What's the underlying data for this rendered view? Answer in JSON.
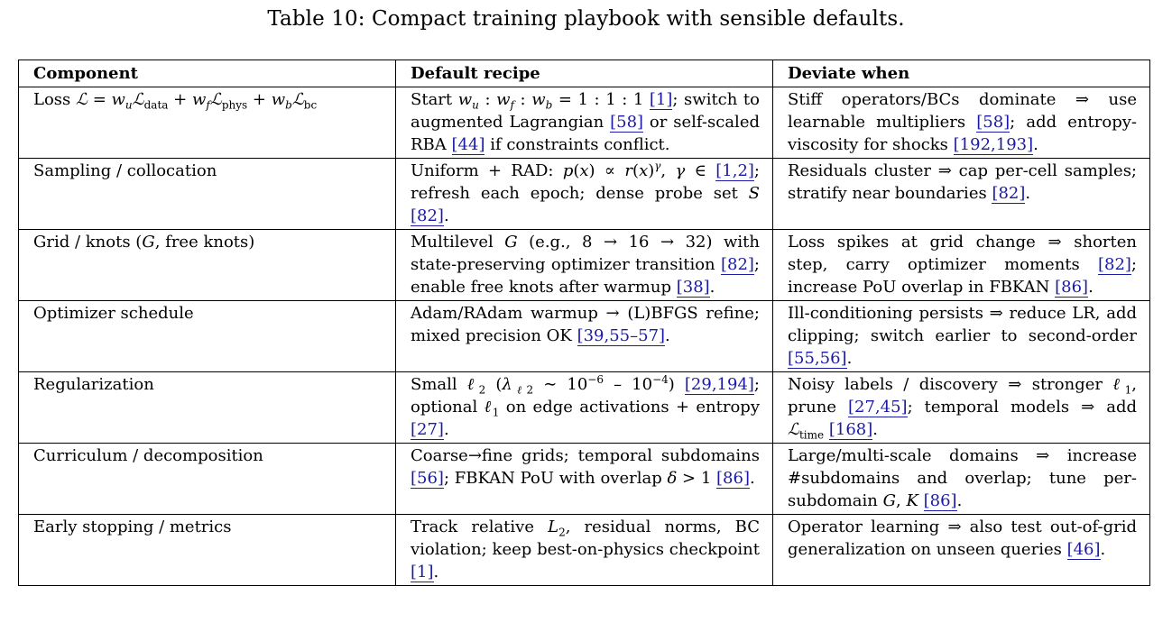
{
  "caption": "Table 10: Compact training playbook with sensible defaults.",
  "headers": [
    "Component",
    "Default recipe",
    "Deviate when"
  ],
  "rows": [
    {
      "component": "Loss ℒ = w_u ℒ_data + w_f ℒ_phys + w_b ℒ_bc",
      "recipe": "Start w_u : w_f : w_b = 1 : 1 : 1 [1]; switch to augmented Lagrangian [58] or self-scaled RBA [44] if constraints conflict.",
      "deviate": "Stiff operators/BCs dominate ⇒ use learnable multipliers [58]; add entropy-viscosity for shocks [192,193]."
    },
    {
      "component": "Sampling / collocation",
      "recipe": "Uniform + RAD: p(x) ∝ r(x)^γ, γ ∈ [1,2]; refresh each epoch; dense probe set S [82].",
      "deviate": "Residuals cluster ⇒ cap per-cell samples; stratify near boundaries [82]."
    },
    {
      "component": "Grid / knots (G, free knots)",
      "recipe": "Multilevel G (e.g., 8 → 16 → 32) with state-preserving optimizer transition [82]; enable free knots after warmup [38].",
      "deviate": "Loss spikes at grid change ⇒ shorten step, carry optimizer moments [82]; increase PoU overlap in FBKAN [86]."
    },
    {
      "component": "Optimizer schedule",
      "recipe": "Adam/RAdam warmup → (L)BFGS refine; mixed precision OK [39,55–57].",
      "deviate": "Ill-conditioning persists ⇒ reduce LR, add clipping; switch earlier to second-order [55,56]."
    },
    {
      "component": "Regularization",
      "recipe": "Small ℓ2 (λ_ℓ2 ∼ 10^−6 – 10^−4) [29,194]; optional ℓ1 on edge activations + entropy [27].",
      "deviate": "Noisy labels / discovery ⇒ stronger ℓ1, prune [27,45]; temporal models ⇒ add ℒ_time [168]."
    },
    {
      "component": "Curriculum / decomposition",
      "recipe": "Coarse→fine grids; temporal subdomains [56]; FBKAN PoU with overlap δ > 1 [86].",
      "deviate": "Large/multi-scale domains ⇒ increase #subdomains and overlap; tune per-subdomain G, K [86]."
    },
    {
      "component": "Early stopping / metrics",
      "recipe": "Track relative L2, residual norms, BC violation; keep best-on-physics checkpoint [1].",
      "deviate": "Operator learning ⇒ also test out-of-grid generalization on unseen queries [46]."
    }
  ],
  "refs": {
    "r1": "[1]",
    "r58": "[58]",
    "r44": "[44]",
    "r192": "[192,193]",
    "r12": "[1,2]",
    "r82": "[82]",
    "r38": "[38]",
    "r86": "[86]",
    "r39": "[39,55–57]",
    "r5556": "[55,56]",
    "r29": "[29,194]",
    "r27": "[27]",
    "r2745": "[27,45]",
    "r168": "[168]",
    "r56": "[56]",
    "r46": "[46]"
  },
  "colors": {
    "link": "#1a1aa6",
    "rule": "#000000"
  }
}
